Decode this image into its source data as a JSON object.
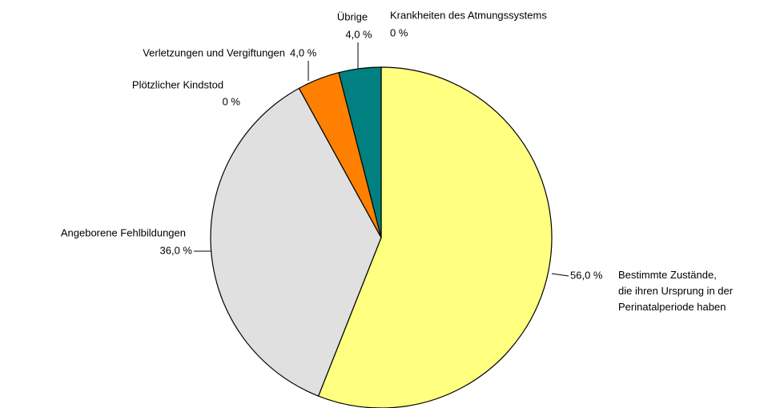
{
  "chart_data": {
    "type": "pie",
    "categories": [
      "Bestimmte Zustände,\ndie ihren Ursprung in der\nPerinatalperiode haben",
      "Angeborene Fehlbildungen",
      "Plötzlicher Kindstod",
      "Verletzungen und Vergiftungen",
      "Übrige",
      "Krankheiten des Atmungssystems"
    ],
    "values": [
      56,
      36,
      0,
      4,
      4,
      0
    ],
    "value_labels": [
      "56,0 %",
      "36,0 %",
      "0 %",
      "4,0 %",
      "4,0 %",
      "0 %"
    ],
    "colors": [
      "#ffff80",
      "#e0e0e0",
      "#c0c0c0",
      "#ff8000",
      "#008080",
      "#808080"
    ]
  }
}
